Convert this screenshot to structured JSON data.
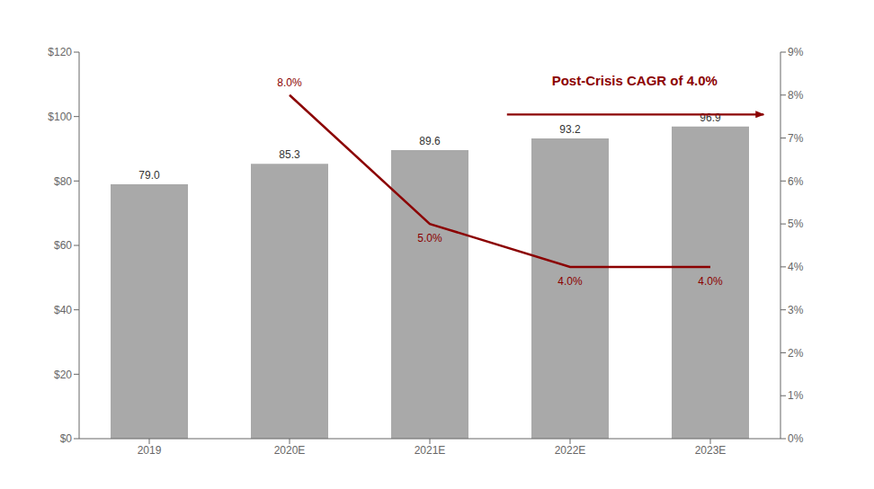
{
  "chart_data": {
    "type": "bar",
    "categories": [
      "2019",
      "2020E",
      "2021E",
      "2022E",
      "2023E"
    ],
    "series": [
      {
        "type": "bar",
        "color": "#a9a9a9",
        "values": [
          79.0,
          85.3,
          89.6,
          93.2,
          96.9
        ],
        "value_labels": [
          "79.0",
          "85.3",
          "89.6",
          "93.2",
          "96.9"
        ],
        "data_labels": true
      },
      {
        "type": "line",
        "axis": "y2",
        "color": "#8b0000",
        "values": [
          null,
          8.0,
          5.0,
          4.0,
          4.0
        ],
        "value_labels": [
          null,
          "8.0%",
          "5.0%",
          "4.0%",
          "4.0%"
        ],
        "data_labels": true
      }
    ],
    "ylim": [
      0,
      120
    ],
    "yticks": [
      {
        "value": 0,
        "label": "$0"
      },
      {
        "value": 20,
        "label": "$20"
      },
      {
        "value": 40,
        "label": "$40"
      },
      {
        "value": 60,
        "label": "$60"
      },
      {
        "value": 80,
        "label": "$80"
      },
      {
        "value": 100,
        "label": "$100"
      },
      {
        "value": 120,
        "label": "$120"
      }
    ],
    "y2lim": [
      0,
      9
    ],
    "y2ticks": [
      {
        "value": 0,
        "label": "0%"
      },
      {
        "value": 1,
        "label": "1%"
      },
      {
        "value": 2,
        "label": "2%"
      },
      {
        "value": 3,
        "label": "3%"
      },
      {
        "value": 4,
        "label": "4%"
      },
      {
        "value": 5,
        "label": "5%"
      },
      {
        "value": 6,
        "label": "6%"
      },
      {
        "value": 7,
        "label": "7%"
      },
      {
        "value": 8,
        "label": "8%"
      },
      {
        "value": 9,
        "label": "9%"
      }
    ],
    "annotation": "Post-Crisis CAGR of 4.0%",
    "annotation_color": "#8b0000",
    "grid": false
  }
}
